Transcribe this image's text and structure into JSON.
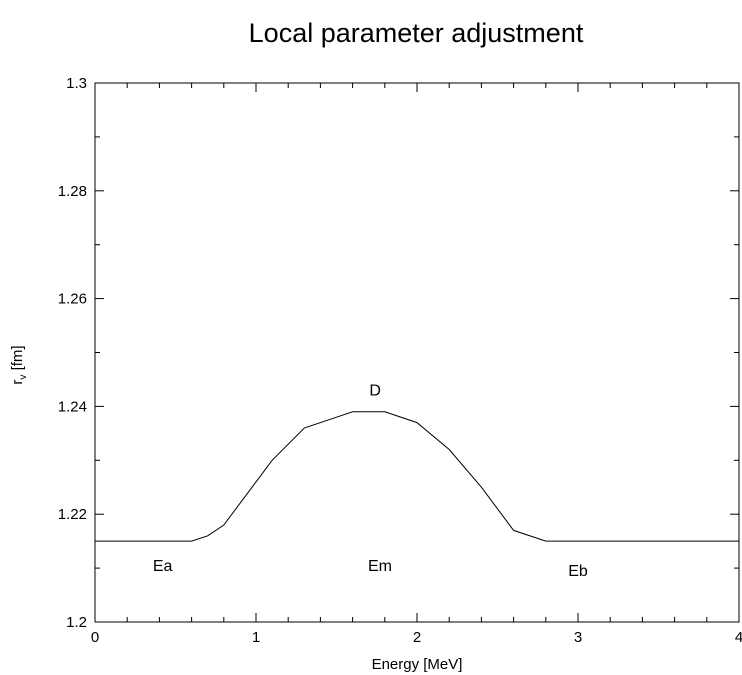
{
  "chart_data": {
    "type": "line",
    "title": "Local parameter adjustment",
    "xlabel": "Energy [MeV]",
    "ylabel_main": "r",
    "ylabel_sub": "v",
    "ylabel_unit": " [fm]",
    "xlim": [
      0,
      4
    ],
    "ylim": [
      1.2,
      1.3
    ],
    "xticks": [
      0,
      1,
      2,
      3,
      4
    ],
    "xtick_labels": [
      "0",
      "1",
      "2",
      "3",
      "4"
    ],
    "yticks": [
      1.2,
      1.22,
      1.24,
      1.26,
      1.28,
      1.3
    ],
    "ytick_labels": [
      "1.2",
      "1.22",
      "1.24",
      "1.26",
      "1.28",
      "1.3"
    ],
    "grid": false,
    "series": [
      {
        "x": [
          0,
          0.6,
          0.7,
          0.8,
          1.0,
          1.1,
          1.3,
          1.5,
          1.6,
          1.8,
          2.0,
          2.2,
          2.4,
          2.6,
          2.8,
          3.0,
          4.0
        ],
        "values": [
          1.215,
          1.215,
          1.216,
          1.218,
          1.226,
          1.23,
          1.236,
          1.238,
          1.239,
          1.239,
          1.237,
          1.232,
          1.225,
          1.217,
          1.215,
          1.215,
          1.215
        ]
      }
    ],
    "annotations": [
      {
        "text": "Ea",
        "x": 0.42,
        "y": 1.2095
      },
      {
        "text": "Em",
        "x": 1.77,
        "y": 1.2095
      },
      {
        "text": "Eb",
        "x": 3.0,
        "y": 1.2085
      },
      {
        "text": "D",
        "x": 1.74,
        "y": 1.242
      }
    ],
    "colors": {
      "line": "#000000",
      "axes": "#000000",
      "background": "#ffffff"
    }
  }
}
